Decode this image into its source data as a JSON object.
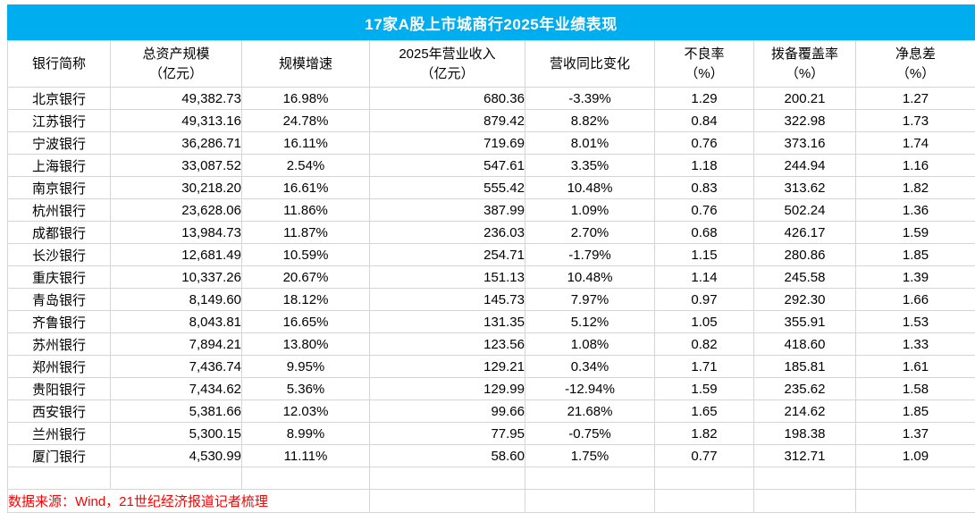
{
  "chart_data": {
    "type": "table",
    "title": "17家A股上市城商行2025年业绩表现",
    "columns": [
      {
        "key": "bank",
        "label": "银行简称",
        "unit": ""
      },
      {
        "key": "assets",
        "label": "总资产规模",
        "unit": "（亿元）"
      },
      {
        "key": "growth",
        "label": "规模增速",
        "unit": ""
      },
      {
        "key": "revenue",
        "label": "2025年营业收入",
        "unit": "（亿元）"
      },
      {
        "key": "rev_change",
        "label": "营收同比变化",
        "unit": ""
      },
      {
        "key": "npl",
        "label": "不良率",
        "unit": "（%）"
      },
      {
        "key": "coverage",
        "label": "拨备覆盖率",
        "unit": "（%）"
      },
      {
        "key": "nim",
        "label": "净息差",
        "unit": "（%）"
      }
    ],
    "rows": [
      [
        "北京银行",
        "49,382.73",
        "16.98%",
        "680.36",
        "-3.39%",
        "1.29",
        "200.21",
        "1.27"
      ],
      [
        "江苏银行",
        "49,313.16",
        "24.78%",
        "879.42",
        "8.82%",
        "0.84",
        "322.98",
        "1.73"
      ],
      [
        "宁波银行",
        "36,286.71",
        "16.11%",
        "719.69",
        "8.01%",
        "0.76",
        "373.16",
        "1.74"
      ],
      [
        "上海银行",
        "33,087.52",
        "2.54%",
        "547.61",
        "3.35%",
        "1.18",
        "244.94",
        "1.16"
      ],
      [
        "南京银行",
        "30,218.20",
        "16.61%",
        "555.42",
        "10.48%",
        "0.83",
        "313.62",
        "1.82"
      ],
      [
        "杭州银行",
        "23,628.06",
        "11.86%",
        "387.99",
        "1.09%",
        "0.76",
        "502.24",
        "1.36"
      ],
      [
        "成都银行",
        "13,984.73",
        "11.87%",
        "236.03",
        "2.70%",
        "0.68",
        "426.17",
        "1.59"
      ],
      [
        "长沙银行",
        "12,681.49",
        "10.59%",
        "254.71",
        "-1.79%",
        "1.15",
        "280.86",
        "1.85"
      ],
      [
        "重庆银行",
        "10,337.26",
        "20.67%",
        "151.13",
        "10.48%",
        "1.14",
        "245.58",
        "1.39"
      ],
      [
        "青岛银行",
        "8,149.60",
        "18.12%",
        "145.73",
        "7.97%",
        "0.97",
        "292.30",
        "1.66"
      ],
      [
        "齐鲁银行",
        "8,043.81",
        "16.65%",
        "131.35",
        "5.12%",
        "1.05",
        "355.91",
        "1.53"
      ],
      [
        "苏州银行",
        "7,894.21",
        "13.80%",
        "123.56",
        "1.08%",
        "0.82",
        "418.60",
        "1.33"
      ],
      [
        "郑州银行",
        "7,436.74",
        "9.95%",
        "129.21",
        "0.34%",
        "1.71",
        "185.81",
        "1.61"
      ],
      [
        "贵阳银行",
        "7,434.62",
        "5.36%",
        "129.99",
        "-12.94%",
        "1.59",
        "235.62",
        "1.58"
      ],
      [
        "西安银行",
        "5,381.66",
        "12.03%",
        "99.66",
        "21.68%",
        "1.65",
        "214.62",
        "1.85"
      ],
      [
        "兰州银行",
        "5,300.15",
        "8.99%",
        "77.95",
        "-0.75%",
        "1.82",
        "198.38",
        "1.37"
      ],
      [
        "厦门银行",
        "4,530.99",
        "11.11%",
        "58.60",
        "1.75%",
        "0.77",
        "312.71",
        "1.09"
      ]
    ],
    "source": "数据来源：Wind，21世纪经济报道记者梳理"
  },
  "colors": {
    "title_bg": "#00AEEF",
    "title_text": "#FFFFFF",
    "source_text": "#FF0000",
    "grid": "#D5D5D5",
    "text": "#000000"
  }
}
